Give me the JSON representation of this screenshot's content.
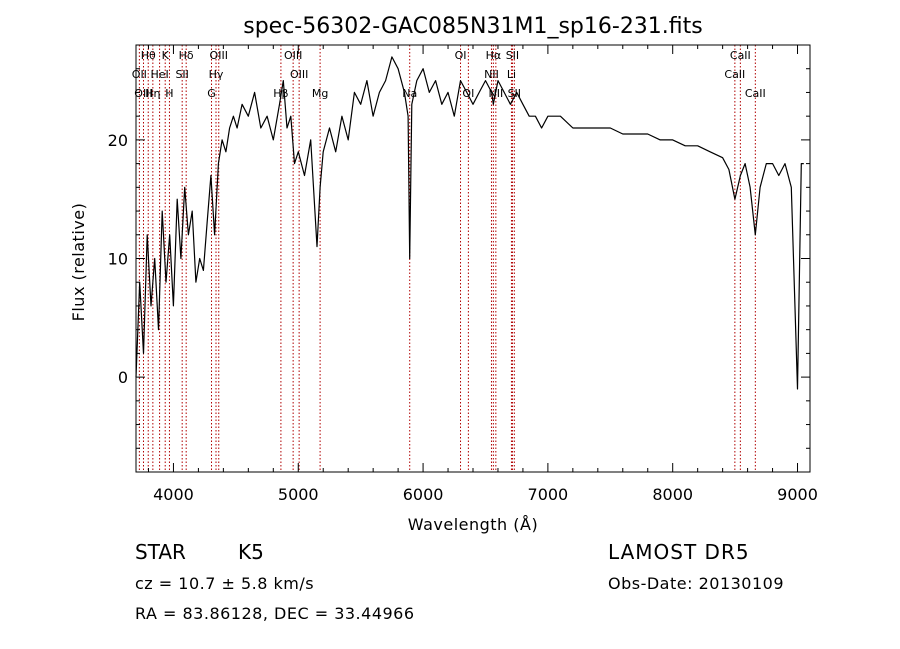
{
  "chart_data": {
    "type": "line",
    "title": "spec-56302-GAC085N31M1_sp16-231.fits",
    "xlabel": "Wavelength (Å)",
    "ylabel": "Flux (relative)",
    "xlim": [
      3700,
      9100
    ],
    "ylim": [
      -8,
      28
    ],
    "xticks": [
      4000,
      5000,
      6000,
      7000,
      8000,
      9000
    ],
    "yticks": [
      0,
      10,
      20
    ],
    "grid": false,
    "line_color": "#000000",
    "marker_color": "#b00000",
    "spectrum": {
      "x": [
        3700,
        3730,
        3760,
        3790,
        3820,
        3850,
        3880,
        3910,
        3940,
        3970,
        4000,
        4030,
        4060,
        4090,
        4120,
        4150,
        4180,
        4210,
        4240,
        4270,
        4300,
        4330,
        4360,
        4390,
        4420,
        4450,
        4480,
        4510,
        4550,
        4600,
        4650,
        4700,
        4750,
        4800,
        4850,
        4880,
        4910,
        4940,
        4970,
        5000,
        5050,
        5100,
        5150,
        5175,
        5200,
        5250,
        5300,
        5350,
        5400,
        5450,
        5500,
        5550,
        5600,
        5650,
        5700,
        5750,
        5800,
        5850,
        5880,
        5893,
        5910,
        5950,
        6000,
        6050,
        6100,
        6150,
        6200,
        6250,
        6300,
        6350,
        6400,
        6450,
        6500,
        6550,
        6563,
        6600,
        6650,
        6700,
        6750,
        6800,
        6850,
        6900,
        6950,
        7000,
        7100,
        7200,
        7300,
        7400,
        7500,
        7600,
        7700,
        7800,
        7900,
        8000,
        8100,
        8200,
        8300,
        8400,
        8450,
        8498,
        8542,
        8580,
        8620,
        8662,
        8700,
        8750,
        8800,
        8850,
        8900,
        8950,
        9000,
        9030,
        9050
      ],
      "y": [
        0,
        8,
        2,
        12,
        6,
        10,
        4,
        14,
        8,
        12,
        6,
        15,
        10,
        16,
        12,
        14,
        8,
        10,
        9,
        13,
        17,
        12,
        18,
        20,
        19,
        21,
        22,
        21,
        23,
        22,
        24,
        21,
        22,
        20,
        23,
        25,
        21,
        22,
        18,
        19,
        17,
        20,
        11,
        16,
        19,
        21,
        19,
        22,
        20,
        24,
        23,
        25,
        22,
        24,
        25,
        27,
        26,
        24,
        22,
        10,
        23,
        25,
        26,
        24,
        25,
        23,
        24,
        22,
        25,
        24,
        23,
        24,
        25,
        24,
        23,
        25,
        24,
        23,
        24,
        23,
        22,
        22,
        21,
        22,
        22,
        21,
        21,
        21,
        21,
        20.5,
        20.5,
        20.5,
        20,
        20,
        19.5,
        19.5,
        19,
        18.5,
        17.5,
        15,
        17,
        18,
        16,
        12,
        16,
        18,
        18,
        17,
        18,
        16,
        -1,
        18,
        18
      ]
    },
    "line_markers": [
      {
        "label": "Hθ",
        "x": 3798,
        "row": 1
      },
      {
        "label": "OII",
        "x": 3727,
        "row": 2
      },
      {
        "label": "OIII",
        "x": 3760,
        "row": 3
      },
      {
        "label": "Hη",
        "x": 3835,
        "row": 3
      },
      {
        "label": "HeI",
        "x": 3889,
        "row": 2
      },
      {
        "label": "K",
        "x": 3934,
        "row": 1
      },
      {
        "label": "H",
        "x": 3968,
        "row": 3
      },
      {
        "label": "SII",
        "x": 4070,
        "row": 2
      },
      {
        "label": "Hδ",
        "x": 4102,
        "row": 1
      },
      {
        "label": "Hγ",
        "x": 4341,
        "row": 2
      },
      {
        "label": "G",
        "x": 4305,
        "row": 3
      },
      {
        "label": "OIII",
        "x": 4363,
        "row": 1
      },
      {
        "label": "Hβ",
        "x": 4861,
        "row": 3
      },
      {
        "label": "OIII",
        "x": 4959,
        "row": 1
      },
      {
        "label": "OIII",
        "x": 5007,
        "row": 2
      },
      {
        "label": "Mg",
        "x": 5175,
        "row": 3
      },
      {
        "label": "Na",
        "x": 5893,
        "row": 3
      },
      {
        "label": "OI",
        "x": 6300,
        "row": 1
      },
      {
        "label": "OI",
        "x": 6363,
        "row": 3
      },
      {
        "label": "NII",
        "x": 6548,
        "row": 2
      },
      {
        "label": "Hα",
        "x": 6563,
        "row": 1
      },
      {
        "label": "NII",
        "x": 6583,
        "row": 3
      },
      {
        "label": "Li",
        "x": 6708,
        "row": 2
      },
      {
        "label": "SII",
        "x": 6716,
        "row": 1
      },
      {
        "label": "SII",
        "x": 6731,
        "row": 3
      },
      {
        "label": "CaII",
        "x": 8498,
        "row": 2
      },
      {
        "label": "CaII",
        "x": 8542,
        "row": 1
      },
      {
        "label": "CaII",
        "x": 8662,
        "row": 3
      }
    ]
  },
  "info": {
    "object_class": "STAR",
    "subclass": "K5",
    "survey": "LAMOST DR5",
    "redshift": "cz = 10.7 ± 5.8 km/s",
    "obs_date": "Obs-Date: 20130109",
    "coordinates": "RA =  83.86128, DEC =  33.44966"
  }
}
